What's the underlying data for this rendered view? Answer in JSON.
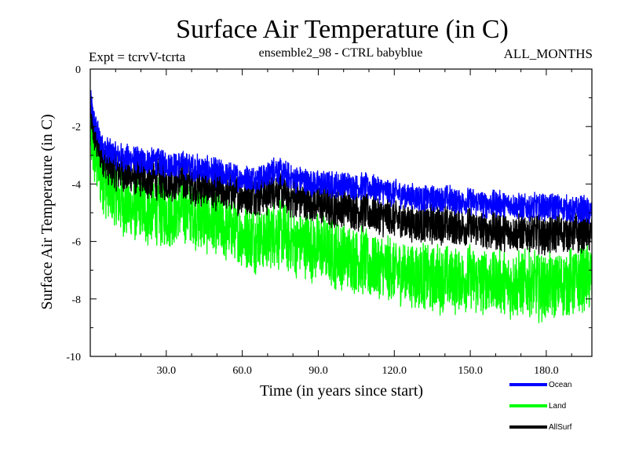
{
  "chart_data": {
    "type": "line",
    "title": "Surface Air Temperature (in C)",
    "subtitle": "ensemble2_98 - CTRL babyblue",
    "expt_label": "Expt = tcrvV-tcrta",
    "months_label": "ALL_MONTHS",
    "xlabel": "Time (in years since start)",
    "ylabel": "Surface Air Temperature (in C)",
    "xlim": [
      0,
      198
    ],
    "ylim": [
      -10,
      0
    ],
    "x_ticks": [
      30,
      60,
      90,
      120,
      150,
      180
    ],
    "x_tick_labels": [
      "30.0",
      "60.0",
      "90.0",
      "120.0",
      "150.0",
      "180.0"
    ],
    "y_ticks": [
      0,
      -2,
      -4,
      -6,
      -8,
      -10
    ],
    "y_tick_labels": [
      "0",
      "-2",
      "-4",
      "-6",
      "-8",
      "-10"
    ],
    "legend_position": "below-right",
    "grid": false,
    "x": [
      0,
      1,
      2,
      3,
      5,
      8,
      10,
      15,
      20,
      25,
      30,
      35,
      40,
      45,
      50,
      55,
      60,
      65,
      70,
      73,
      75,
      80,
      85,
      90,
      95,
      100,
      105,
      110,
      115,
      120,
      125,
      130,
      135,
      140,
      145,
      150,
      155,
      160,
      165,
      170,
      175,
      180,
      185,
      190,
      195,
      198
    ],
    "series": [
      {
        "name": "Ocean",
        "color": "#0000ff",
        "values": [
          -1.0,
          -1.6,
          -2.0,
          -2.3,
          -2.7,
          -2.9,
          -3.0,
          -3.1,
          -3.2,
          -3.2,
          -3.3,
          -3.3,
          -3.4,
          -3.5,
          -3.6,
          -3.7,
          -3.8,
          -3.8,
          -3.7,
          -3.4,
          -3.6,
          -3.8,
          -3.9,
          -4.0,
          -4.0,
          -4.0,
          -4.1,
          -4.1,
          -4.2,
          -4.3,
          -4.4,
          -4.5,
          -4.5,
          -4.5,
          -4.6,
          -4.6,
          -4.7,
          -4.7,
          -4.7,
          -4.8,
          -4.8,
          -4.8,
          -4.8,
          -4.9,
          -4.9,
          -5.0
        ]
      },
      {
        "name": "Land",
        "color": "#00ff00",
        "values": [
          -2.2,
          -2.8,
          -3.1,
          -3.3,
          -3.8,
          -4.3,
          -4.5,
          -4.8,
          -4.9,
          -5.0,
          -5.0,
          -4.9,
          -5.0,
          -5.2,
          -5.4,
          -5.6,
          -5.8,
          -5.9,
          -5.9,
          -5.6,
          -5.8,
          -6.0,
          -6.1,
          -6.2,
          -6.4,
          -6.5,
          -6.6,
          -6.8,
          -6.9,
          -7.0,
          -7.1,
          -7.2,
          -7.3,
          -7.3,
          -7.3,
          -7.3,
          -7.4,
          -7.4,
          -7.5,
          -7.5,
          -7.5,
          -7.6,
          -7.5,
          -7.4,
          -7.3,
          -7.2
        ]
      },
      {
        "name": "AllSurf",
        "color": "#000000",
        "values": [
          -1.4,
          -2.0,
          -2.4,
          -2.7,
          -3.1,
          -3.4,
          -3.5,
          -3.7,
          -3.8,
          -3.8,
          -3.9,
          -3.9,
          -4.0,
          -4.1,
          -4.2,
          -4.3,
          -4.4,
          -4.4,
          -4.4,
          -4.1,
          -4.3,
          -4.5,
          -4.6,
          -4.7,
          -4.8,
          -4.8,
          -4.9,
          -5.0,
          -5.1,
          -5.2,
          -5.3,
          -5.4,
          -5.4,
          -5.4,
          -5.5,
          -5.5,
          -5.6,
          -5.6,
          -5.7,
          -5.7,
          -5.7,
          -5.8,
          -5.7,
          -5.7,
          -5.7,
          -5.7
        ]
      }
    ]
  }
}
